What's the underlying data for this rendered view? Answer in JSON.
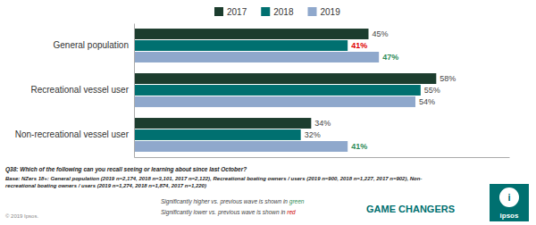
{
  "chart_data": {
    "type": "bar",
    "orientation": "horizontal",
    "categories": [
      "General population",
      "Recreational vessel user",
      "Non-recreational vessel user"
    ],
    "series": [
      {
        "name": "2017",
        "color": "#1c3d2e",
        "values": [
          45,
          58,
          34
        ],
        "value_labels": [
          "45%",
          "58%",
          "34%"
        ],
        "label_colors": [
          "#444444",
          "#444444",
          "#444444"
        ]
      },
      {
        "name": "2018",
        "color": "#007070",
        "values": [
          41,
          55,
          32
        ],
        "value_labels": [
          "41%",
          "55%",
          "32%"
        ],
        "label_colors": [
          "#e00000",
          "#444444",
          "#444444"
        ]
      },
      {
        "name": "2019",
        "color": "#8fa8cc",
        "values": [
          47,
          54,
          41
        ],
        "value_labels": [
          "47%",
          "54%",
          "41%"
        ],
        "label_colors": [
          "#2e8b57",
          "#444444",
          "#2e8b57"
        ]
      }
    ],
    "xlim": [
      0,
      72
    ],
    "xticks": [],
    "data_labels": true,
    "tick_labels": "y",
    "grid": false,
    "legend": "top",
    "annotations": [
      {
        "text": "Q38: Which of the following can you recall seeing or learning about since last October?"
      },
      {
        "text": "Base: NZers 18+: General population (2019 n=2,174, 2018 n=3,101, 2017 n=2,122), Recreational boating owners / users (2019 n=900, 2018 n=1,227, 2017 n=902), Non-"
      },
      {
        "text": "recreational boating owners / users (2019 n=1,274, 2018 n=1,874, 2017 n=1,220)"
      },
      {
        "text": "© 2019 Ipsos."
      },
      {
        "text": "Significantly higher vs. previous wave is shown in "
      },
      {
        "text": "green",
        "color": "#2e8b57"
      },
      {
        "text": "Significantly lower vs. previous wave is shown in "
      },
      {
        "text": "red",
        "color": "#cc0000"
      },
      {
        "text": "GAME CHANGERS",
        "color": "#007070"
      },
      {
        "text": "i",
        "color": "#007070"
      },
      {
        "text": "ipsos"
      }
    ]
  }
}
